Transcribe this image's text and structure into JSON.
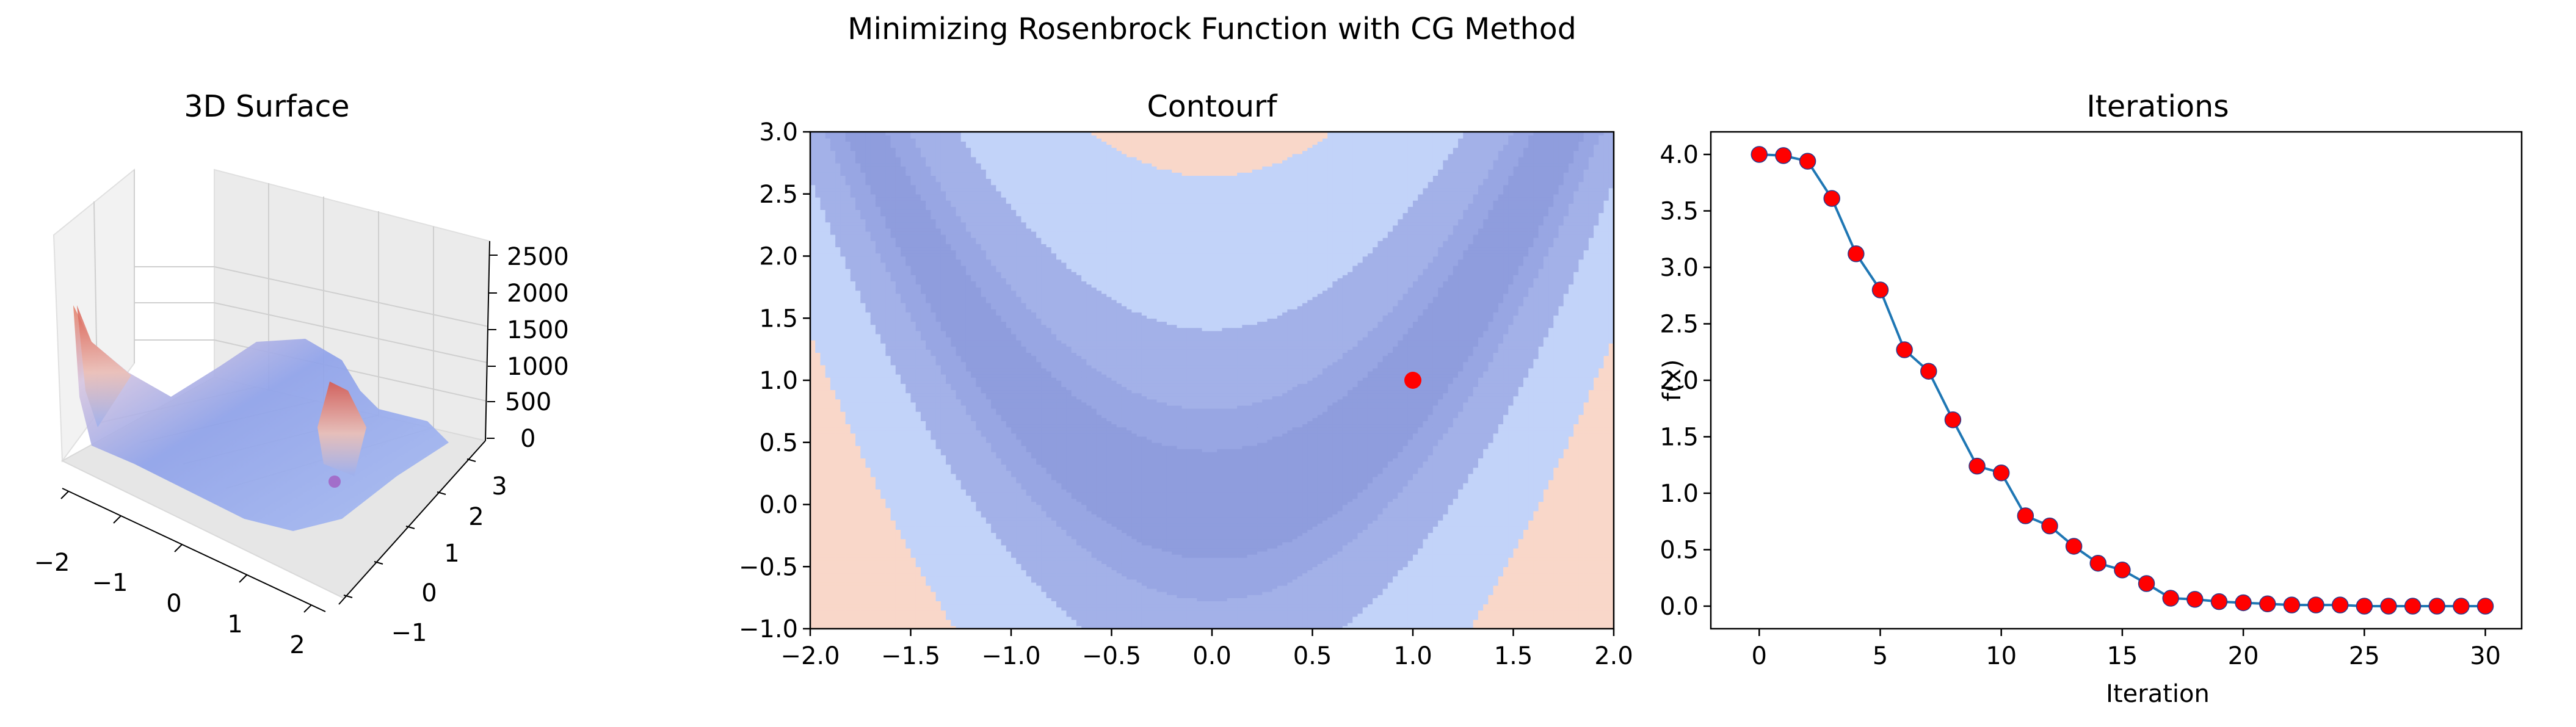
{
  "figure": {
    "suptitle": "Minimizing Rosenbrock Function with CG Method"
  },
  "colors": {
    "line": "#1f77b4",
    "marker": "#ff0000",
    "marker_edge": "#2b3a8c",
    "contour_levels": [
      "#8f9ddd",
      "#98a6e3",
      "#a3b1e8",
      "#c2d3f9",
      "#f9d7c9"
    ]
  },
  "chart_data": [
    {
      "type": "surface3d",
      "title": "3D Surface",
      "xlim": [
        -2,
        2
      ],
      "ylim": [
        -1,
        3
      ],
      "zlim": [
        0,
        2500
      ],
      "x_ticks": [
        "−2",
        "−1",
        "0",
        "1",
        "2"
      ],
      "y_ticks": [
        "−1",
        "0",
        "1",
        "2",
        "3"
      ],
      "z_ticks": [
        "0",
        "500",
        "1000",
        "1500",
        "2000",
        "2500"
      ],
      "colormap": "coolwarm",
      "marker": {
        "x": 1,
        "y": 1,
        "z": 0
      }
    },
    {
      "type": "contourf",
      "title": "Contourf",
      "xlim": [
        -2,
        2
      ],
      "ylim": [
        -1,
        3
      ],
      "x_ticks": [
        "−2.0",
        "−1.5",
        "−1.0",
        "−0.5",
        "0.0",
        "0.5",
        "1.0",
        "1.5",
        "2.0"
      ],
      "y_ticks": [
        "−1.0",
        "−0.5",
        "0.0",
        "0.5",
        "1.0",
        "1.5",
        "2.0",
        "2.5",
        "3.0"
      ],
      "levels": [
        0,
        20,
        60,
        200,
        700,
        2500
      ],
      "marker": {
        "x": 1,
        "y": 1
      }
    },
    {
      "type": "line",
      "title": "Iterations",
      "xlabel": "Iteration",
      "ylabel": "f(x)",
      "xlim": [
        -2,
        31.5
      ],
      "ylim": [
        -0.2,
        4.2
      ],
      "x_ticks": [
        "0",
        "5",
        "10",
        "15",
        "20",
        "25",
        "30"
      ],
      "y_ticks": [
        "0.0",
        "0.5",
        "1.0",
        "1.5",
        "2.0",
        "2.5",
        "3.0",
        "3.5",
        "4.0"
      ],
      "x": [
        0,
        1,
        2,
        3,
        4,
        5,
        6,
        7,
        8,
        9,
        10,
        11,
        12,
        13,
        14,
        15,
        16,
        17,
        18,
        19,
        20,
        21,
        22,
        23,
        24,
        25,
        26,
        27,
        28,
        29,
        30
      ],
      "y": [
        4.0,
        3.99,
        3.94,
        3.61,
        3.12,
        2.8,
        2.27,
        2.08,
        1.65,
        1.24,
        1.18,
        0.8,
        0.71,
        0.53,
        0.38,
        0.32,
        0.2,
        0.07,
        0.06,
        0.04,
        0.03,
        0.02,
        0.01,
        0.01,
        0.01,
        0.0,
        0.0,
        0.0,
        0.0,
        0.0,
        0.0
      ]
    }
  ]
}
